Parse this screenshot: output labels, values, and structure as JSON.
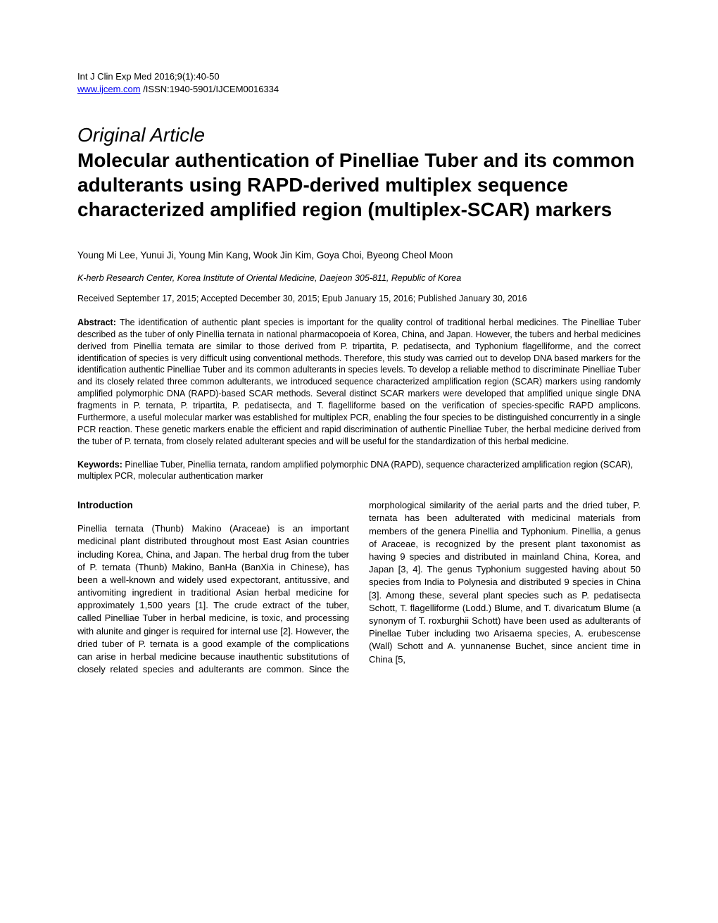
{
  "journal": {
    "citation": "Int J Clin Exp Med 2016;9(1):40-50",
    "link_text": "www.ijcem.com",
    "issn": " /ISSN:1940-5901/IJCEM0016334"
  },
  "article": {
    "type": "Original Article",
    "title": "Molecular authentication of Pinelliae Tuber and its common adulterants using RAPD-derived multiplex sequence characterized amplified region (multiplex-SCAR) markers"
  },
  "authors": "Young Mi Lee, Yunui Ji, Young Min Kang, Wook Jin Kim, Goya Choi, Byeong Cheol Moon",
  "affiliation": "K-herb Research Center, Korea Institute of Oriental Medicine, Daejeon 305-811, Republic of Korea",
  "dates": "Received September 17, 2015; Accepted December 30, 2015; Epub January 15, 2016; Published January 30, 2016",
  "abstract": {
    "label": "Abstract: ",
    "text": "The identification of authentic plant species is important for the quality control of traditional herbal medicines. The Pinelliae Tuber described as the tuber of only Pinellia ternata in national pharmacopoeia of Korea, China, and Japan. However, the tubers and herbal medicines derived from Pinellia ternata are similar to those derived from P. tripartita, P. pedatisecta, and Typhonium flagelliforme, and the correct identification of species is very difficult using conventional methods. Therefore, this study was carried out to develop DNA based markers for the identification authentic Pinelliae Tuber and its common adulterants in species levels. To develop a reliable method to discriminate Pinelliae Tuber and its closely related three common adulterants, we introduced sequence characterized amplification region (SCAR) markers using randomly amplified polymorphic DNA (RAPD)-based SCAR methods. Several distinct SCAR markers were developed that amplified unique single DNA fragments in P. ternata, P. tripartita, P. pedatisecta, and T. flagelliforme based on the verification of species-specific RAPD amplicons. Furthermore, a useful molecular marker was established for multiplex PCR, enabling the four species to be distinguished concurrently in a single PCR reaction. These genetic markers enable the efficient and rapid discrimination of authentic Pinelliae Tuber, the herbal medicine derived from the tuber of P. ternata, from closely related adulterant species and will be useful for the standardization of this herbal medicine."
  },
  "keywords": {
    "label": "Keywords: ",
    "text": "Pinelliae Tuber, Pinellia ternata, random amplified polymorphic DNA (RAPD), sequence characterized amplification region (SCAR), multiplex PCR, molecular authentication marker"
  },
  "intro": {
    "heading": "Introduction",
    "body": "Pinellia ternata (Thunb) Makino (Araceae) is an important medicinal plant distributed throughout most East Asian countries including Korea, China, and Japan. The herbal drug from the tuber of P. ternata (Thunb) Makino, BanHa (BanXia in Chinese), has been a well-known and widely used expectorant, antitussive, and antivomiting ingredient in traditional Asian herbal medicine for approximately 1,500 years [1]. The crude extract of the tuber, called Pinelliae Tuber in herbal medicine, is toxic, and processing with alunite and ginger is required for internal use [2]. However, the dried tuber of P. ternata is a good example of the complications can arise in herbal medicine because inauthentic substitutions of closely related species and adulterants are common. Since the morphological similarity of the aerial parts and the dried tuber, P. ternata has been adulterated with medicinal materials from members of the genera Pinellia and Typhonium. Pinellia, a genus of Araceae, is recognized by the present plant taxonomist as having 9 species and distributed in mainland China, Korea, and Japan [3, 4]. The genus Typhonium suggested having about 50 species from India to Polynesia and distributed 9 species in China [3]. Among these, several plant species such as P. pedatisecta Schott, T. flagelliforme (Lodd.) Blume, and T. divaricatum Blume (a synonym of T. roxburghii Schott) have been used as adulterants of Pinellae Tuber including two Arisaema species, A. erubescense (Wall) Schott and A. yunnanense Buchet, since ancient time in China [5,"
  }
}
